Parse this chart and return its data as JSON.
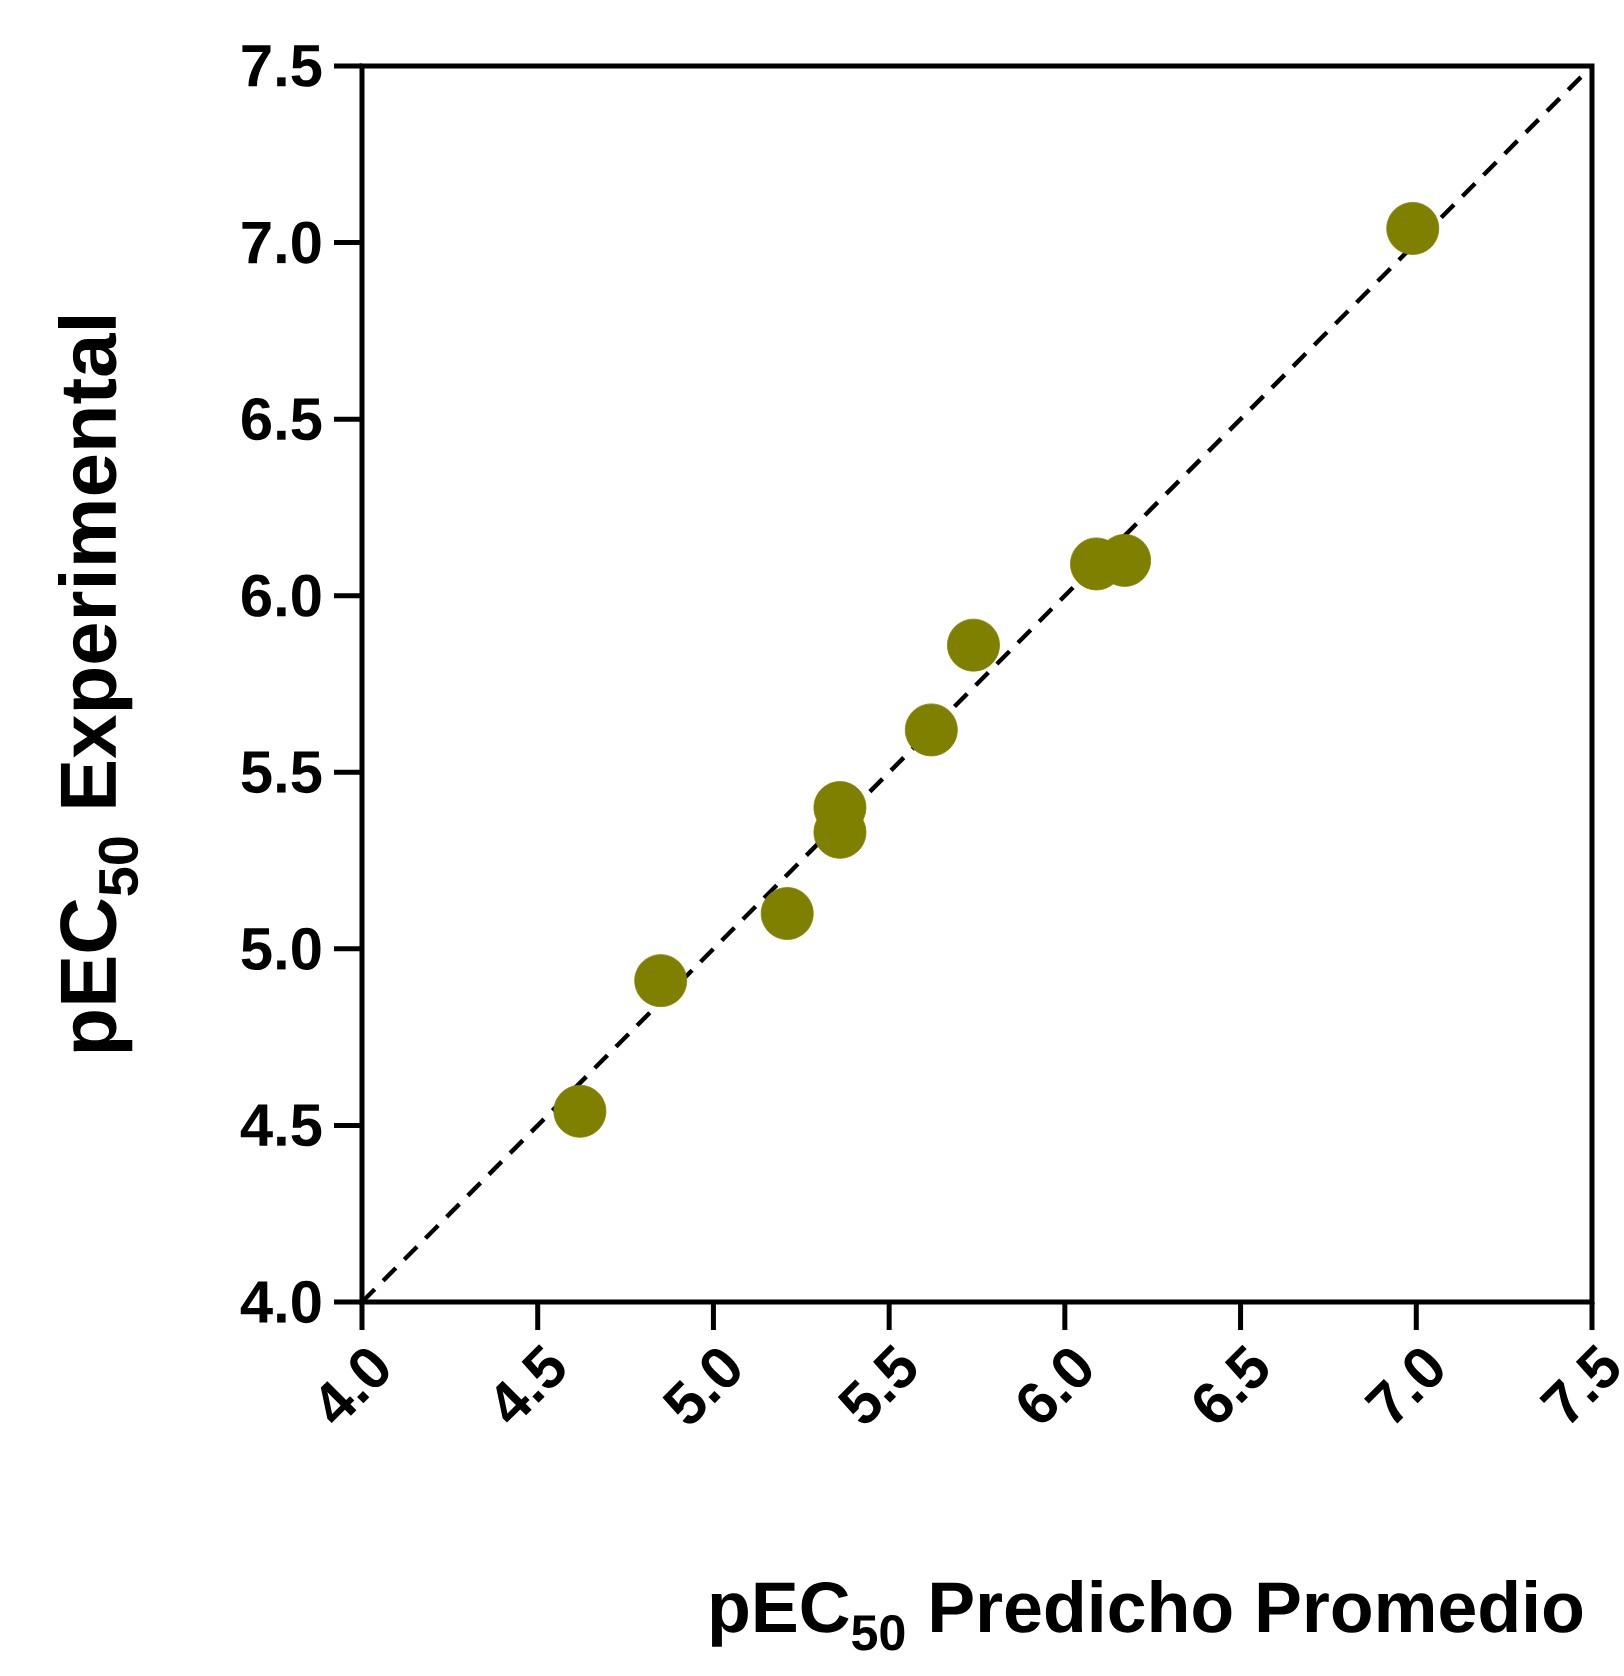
{
  "chart_data": {
    "type": "scatter",
    "xlabel": "pEC$_{50}$ Predicho Promedio",
    "ylabel": "pEC$_{50}$ Experimental",
    "xlim": [
      4.0,
      7.5
    ],
    "ylim": [
      4.0,
      7.5
    ],
    "xticks": [
      {
        "value": 4.0,
        "label": "4.0"
      },
      {
        "value": 4.5,
        "label": "4.5"
      },
      {
        "value": 5.0,
        "label": "5.0"
      },
      {
        "value": 5.5,
        "label": "5.5"
      },
      {
        "value": 6.0,
        "label": "6.0"
      },
      {
        "value": 6.5,
        "label": "6.5"
      },
      {
        "value": 7.0,
        "label": "7.0"
      },
      {
        "value": 7.5,
        "label": "7.5"
      }
    ],
    "yticks": [
      {
        "value": 4.0,
        "label": "4.0"
      },
      {
        "value": 4.5,
        "label": "4.5"
      },
      {
        "value": 5.0,
        "label": "5.0"
      },
      {
        "value": 5.5,
        "label": "5.5"
      },
      {
        "value": 6.0,
        "label": "6.0"
      },
      {
        "value": 6.5,
        "label": "6.5"
      },
      {
        "value": 7.0,
        "label": "7.0"
      },
      {
        "value": 7.5,
        "label": "7.5"
      }
    ],
    "grid": false,
    "marker": "circle",
    "series": [
      {
        "type": "line",
        "color": "#000000",
        "line_style": "dashed",
        "marker": "none",
        "x": [
          4.0,
          7.5
        ],
        "values": [
          4.0,
          7.5
        ]
      },
      {
        "color": "#808000",
        "x": [
          4.62,
          4.85,
          5.21,
          5.36,
          5.36,
          5.62,
          5.74,
          6.09,
          6.17,
          6.99
        ],
        "values": [
          4.54,
          4.91,
          5.1,
          5.33,
          5.4,
          5.62,
          5.86,
          6.09,
          6.1,
          7.04
        ]
      }
    ]
  }
}
